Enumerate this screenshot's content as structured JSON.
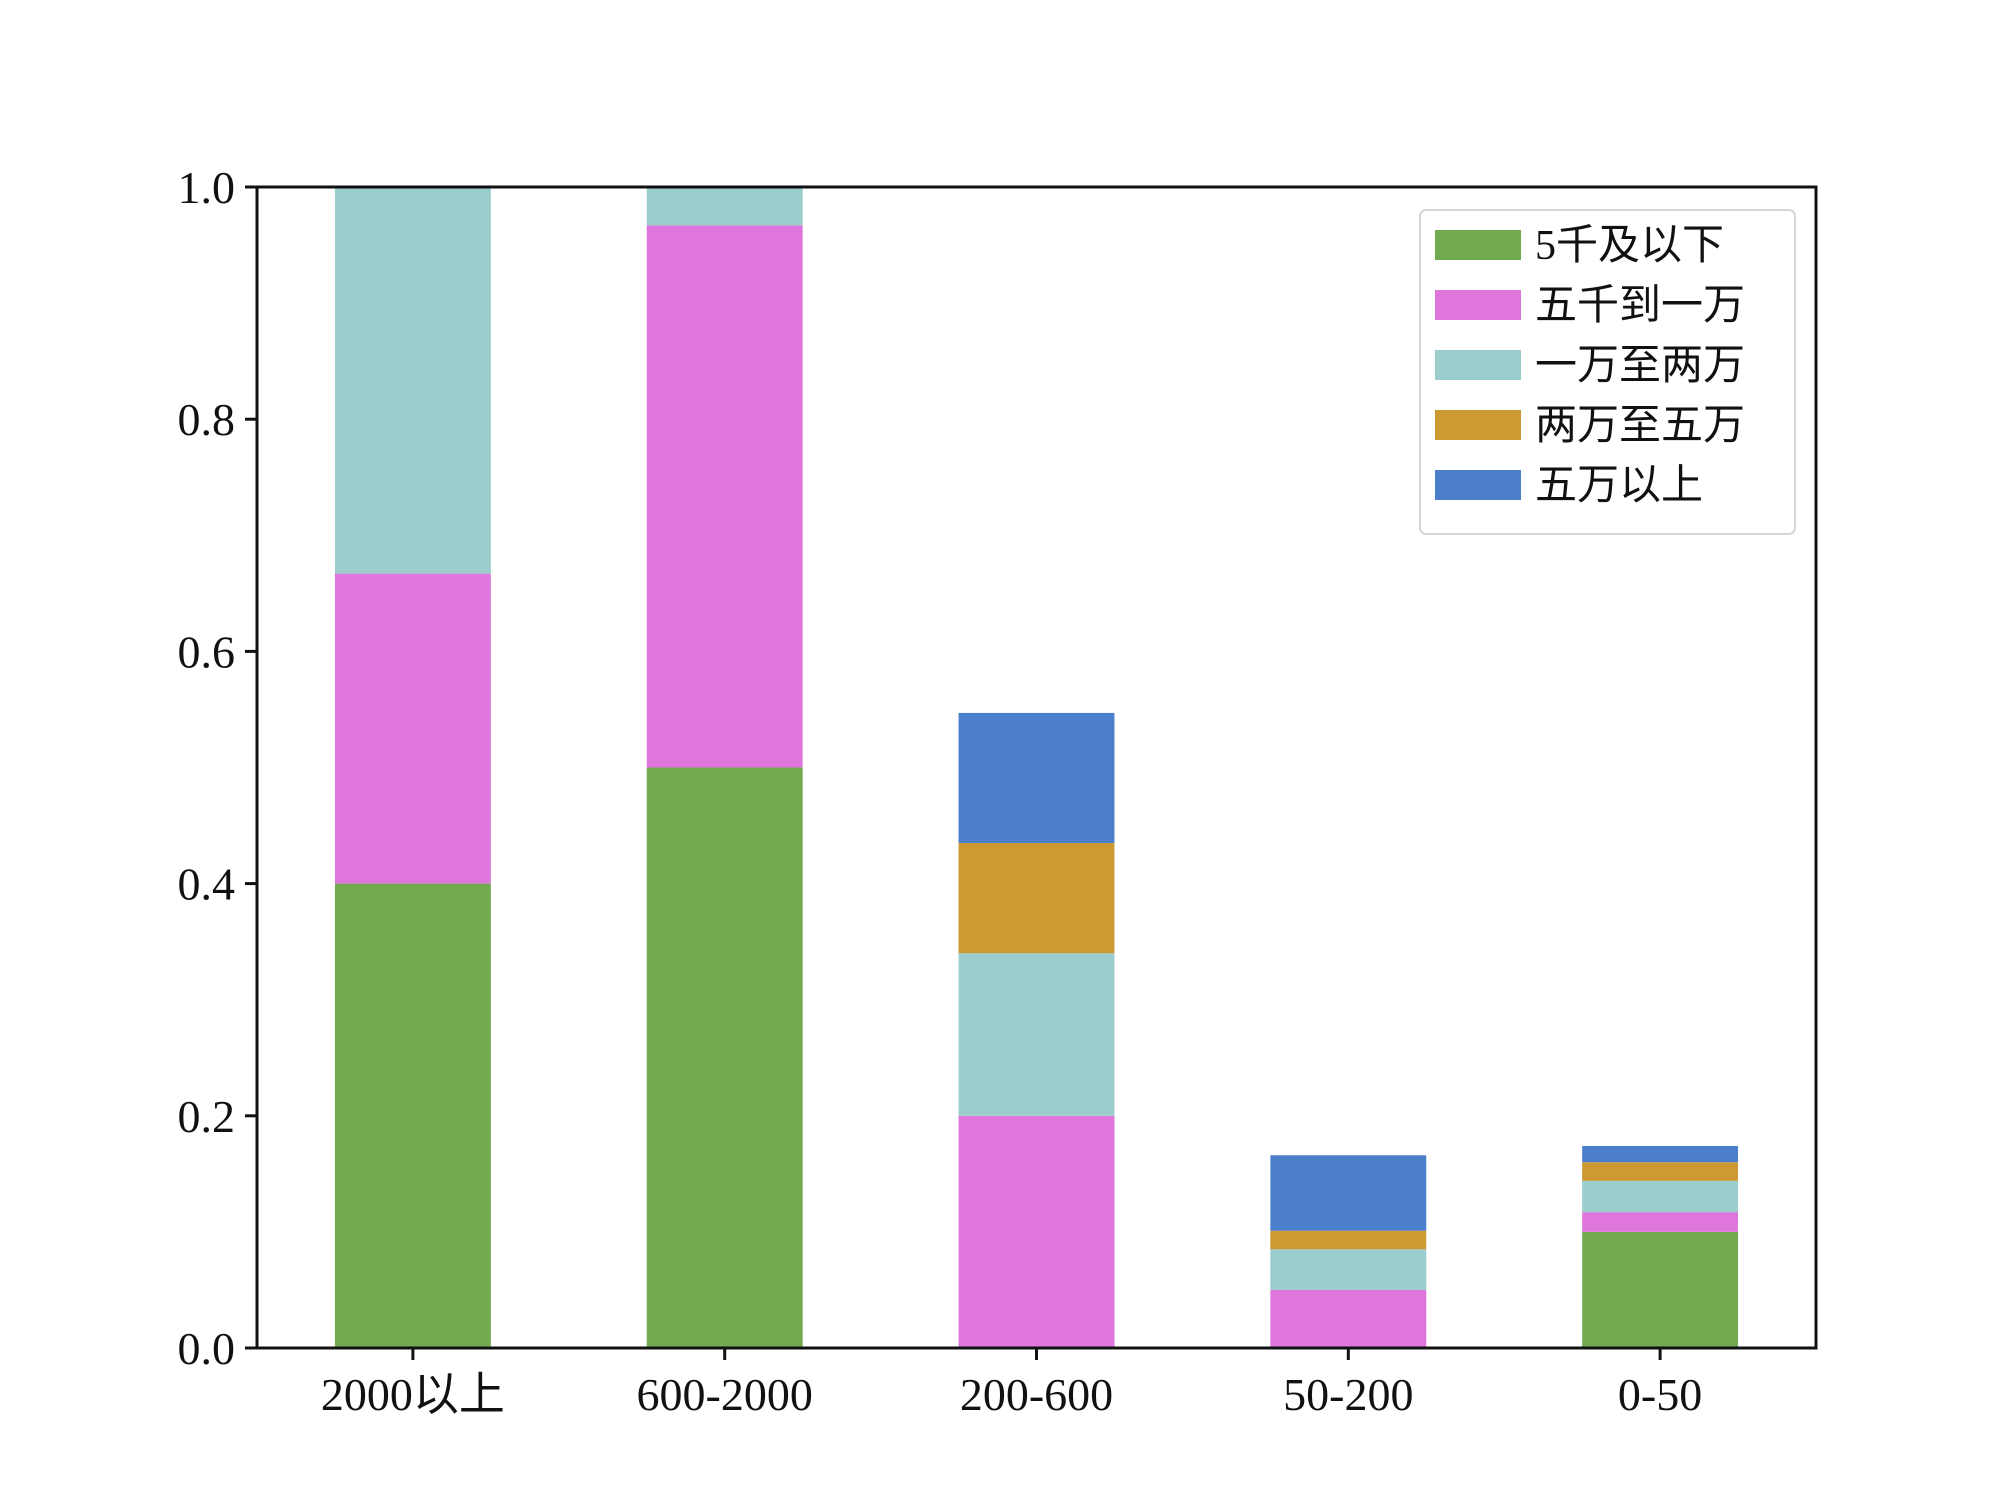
{
  "chart_data": {
    "type": "bar",
    "stacked": true,
    "title": "",
    "xlabel": "",
    "ylabel": "",
    "ylim": [
      0,
      1.0
    ],
    "yticks": [
      "0.0",
      "0.2",
      "0.4",
      "0.6",
      "0.8",
      "1.0"
    ],
    "grid": false,
    "legend_position": "top-right",
    "categories": [
      "2000以上",
      "600-2000",
      "200-600",
      "50-200",
      "0-50"
    ],
    "series": [
      {
        "name": "5千及以下",
        "color": "#72aa52",
        "values": [
          0.4,
          0.5,
          0.0,
          0.0,
          0.1
        ]
      },
      {
        "name": "五千到一万",
        "color": "#de76dc",
        "values": [
          0.267,
          0.467,
          0.2,
          0.05,
          0.017
        ]
      },
      {
        "name": "一万至两万",
        "color": "#9ccdcd",
        "values": [
          0.333,
          0.033,
          0.14,
          0.035,
          0.027
        ]
      },
      {
        "name": "两万至五万",
        "color": "#cd9933",
        "values": [
          0.0,
          0.0,
          0.095,
          0.016,
          0.016
        ]
      },
      {
        "name": "五万以上",
        "color": "#4b7fcc",
        "values": [
          0.0,
          0.0,
          0.112,
          0.065,
          0.014
        ]
      }
    ]
  }
}
